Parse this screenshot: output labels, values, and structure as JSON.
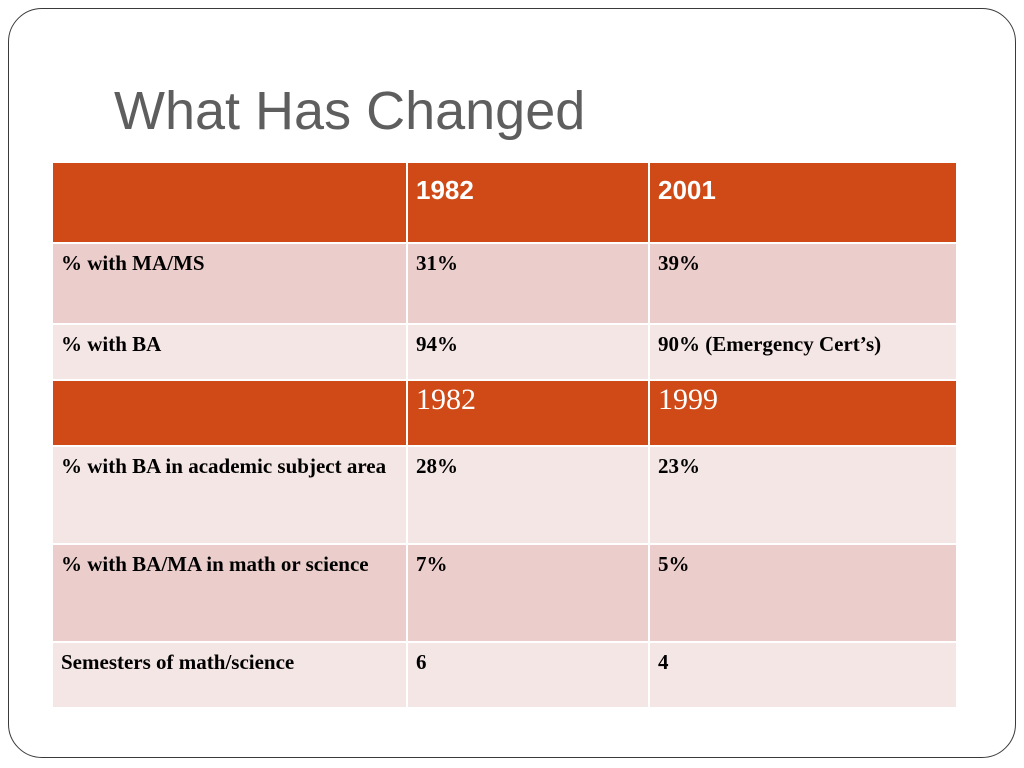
{
  "slide": {
    "title": "What Has Changed"
  },
  "table": {
    "header_1": [
      "",
      "1982",
      "2001"
    ],
    "rows_1": [
      [
        "% with MA/MS",
        "31%",
        "39%"
      ],
      [
        "% with BA",
        "94%",
        "90% (Emergency Cert’s)"
      ]
    ],
    "header_2": [
      "",
      "1982",
      "1999"
    ],
    "rows_2": [
      [
        "% with BA in academic subject area",
        "28%",
        "23%"
      ],
      [
        "% with BA/MA in math or science",
        "7%",
        "5%"
      ],
      [
        "Semesters of math/science",
        "6",
        "4"
      ]
    ]
  },
  "colors": {
    "header_fill": "#d04a17",
    "row_dark": "#ebcdcb",
    "row_light": "#f4e6e5",
    "title_text": "#5e5e5e"
  }
}
